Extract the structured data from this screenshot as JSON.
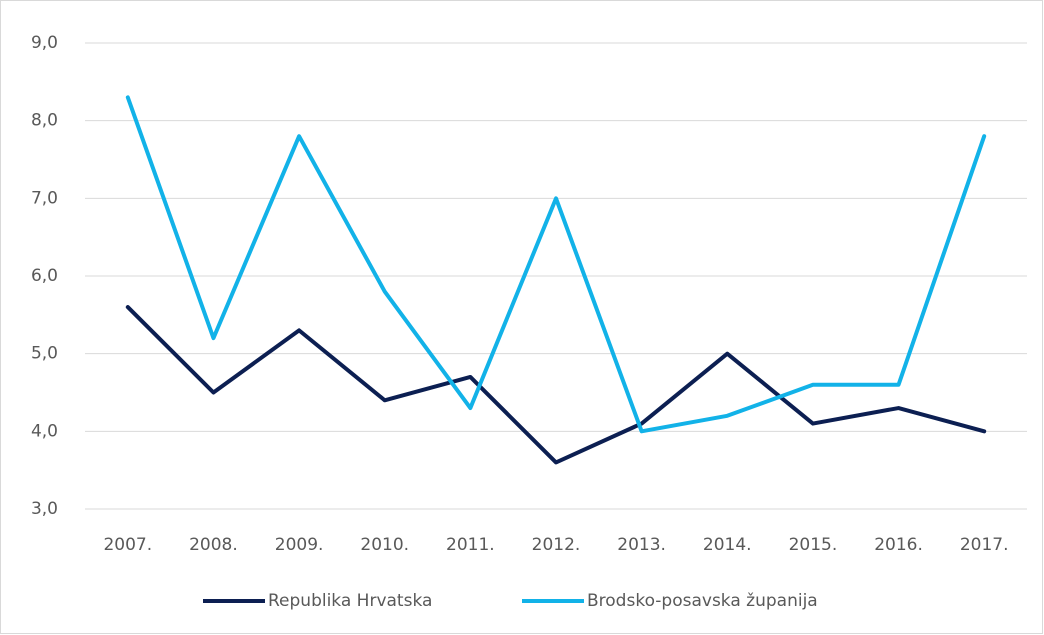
{
  "chart_data": {
    "type": "line",
    "categories": [
      "2007.",
      "2008.",
      "2009.",
      "2010.",
      "2011.",
      "2012.",
      "2013.",
      "2014.",
      "2015.",
      "2016.",
      "2017."
    ],
    "series": [
      {
        "name": "Republika Hrvatska",
        "color": "#0c1f52",
        "values": [
          5.6,
          4.5,
          5.3,
          4.4,
          4.7,
          3.6,
          4.1,
          5.0,
          4.1,
          4.3,
          4.0
        ]
      },
      {
        "name": "Brodsko-posavska županija",
        "color": "#12b2e8",
        "values": [
          8.3,
          5.2,
          7.8,
          5.8,
          4.3,
          7.0,
          4.0,
          4.2,
          4.6,
          4.6,
          7.8
        ]
      }
    ],
    "ylim": [
      3,
      9
    ],
    "yticks": [
      {
        "value": 3,
        "label": "3,0"
      },
      {
        "value": 4,
        "label": "4,0"
      },
      {
        "value": 5,
        "label": "5,0"
      },
      {
        "value": 6,
        "label": "6,0"
      },
      {
        "value": 7,
        "label": "7,0"
      },
      {
        "value": 8,
        "label": "8,0"
      },
      {
        "value": 9,
        "label": "9,0"
      }
    ],
    "grid": true,
    "legend": "bottom"
  }
}
